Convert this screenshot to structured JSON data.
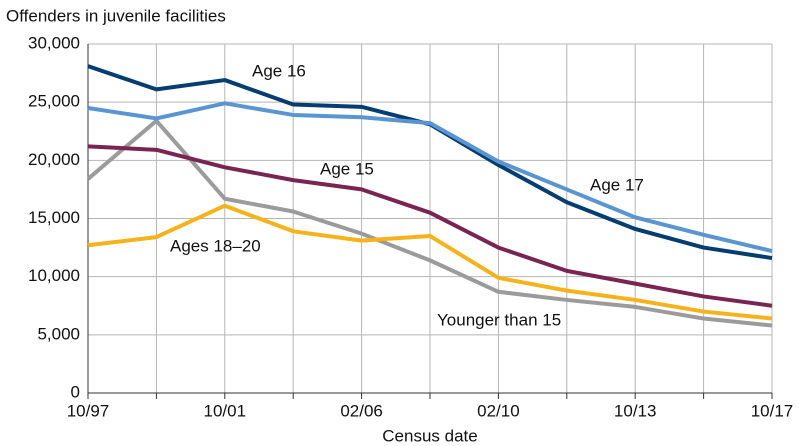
{
  "chart_data": {
    "type": "line",
    "y_axis_label": "Offenders in juvenile facilities",
    "x_axis_label": "Census date",
    "categories": [
      "10/97",
      null,
      "10/01",
      null,
      "02/06",
      null,
      "02/10",
      null,
      "10/13",
      null,
      "10/17"
    ],
    "ylim": [
      0,
      30000
    ],
    "yticks": [
      0,
      {
        "value": 5000,
        "label": "5,000"
      },
      {
        "value": 10000,
        "label": "10,000"
      },
      {
        "value": 15000,
        "label": "15,000"
      },
      {
        "value": 20000,
        "label": "20,000"
      },
      {
        "value": 25000,
        "label": "25,000"
      },
      {
        "value": 30000,
        "label": "30,000"
      }
    ],
    "grid": true,
    "series": [
      {
        "name": "Younger than 15",
        "color": "#9b9b9b",
        "values": [
          18400,
          23400,
          16700,
          15600,
          13700,
          11400,
          8700,
          8000,
          7400,
          6400,
          5800
        ]
      },
      {
        "name": "Ages 18–20",
        "color": "#f6b21b",
        "values": [
          12700,
          13400,
          16100,
          13900,
          13100,
          13500,
          9900,
          8800,
          8000,
          7000,
          6400
        ]
      },
      {
        "name": "Age 15",
        "color": "#7a2453",
        "values": [
          21200,
          20900,
          19400,
          18300,
          17500,
          15500,
          12500,
          10500,
          9400,
          8300,
          7500
        ]
      },
      {
        "name": "Age 16",
        "color": "#053d71",
        "values": [
          28100,
          26100,
          26900,
          24800,
          24600,
          23100,
          19600,
          16400,
          14100,
          12500,
          11600
        ]
      },
      {
        "name": "Age 17",
        "color": "#5a95d2",
        "values": [
          24500,
          23600,
          24900,
          23900,
          23700,
          23200,
          19900,
          17500,
          15100,
          13600,
          12200
        ]
      }
    ]
  }
}
